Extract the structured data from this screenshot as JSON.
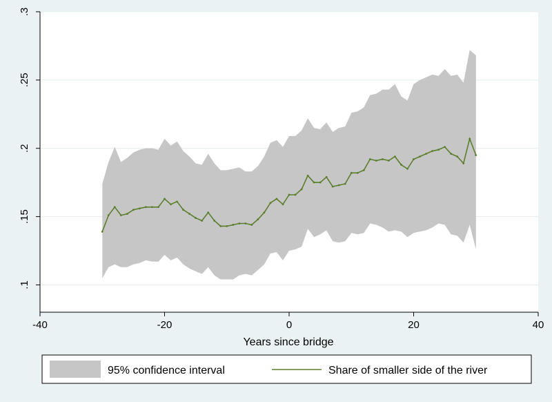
{
  "chart_data": {
    "type": "area",
    "title": "",
    "xlabel": "Years since bridge",
    "ylabel": "",
    "xlim": [
      -40,
      40
    ],
    "ylim": [
      0.08,
      0.3
    ],
    "x_ticks": [
      -40,
      -20,
      0,
      20,
      40
    ],
    "x_tick_labels": [
      "-40",
      "-20",
      "0",
      "20",
      "40"
    ],
    "y_ticks": [
      0.1,
      0.15,
      0.2,
      0.25,
      0.3
    ],
    "y_tick_labels": [
      ".1",
      ".15",
      ".2",
      ".25",
      ".3"
    ],
    "grid": "horizontal",
    "legend_position": "bottom",
    "colors": {
      "band": "#c6c6c6",
      "line": "#5b7e2c",
      "plot_bg": "#ffffff",
      "outer_bg": "#eaf2f3"
    },
    "series": [
      {
        "name": "95% confidence interval",
        "kind": "band",
        "x": [
          -30,
          -29,
          -28,
          -27,
          -26,
          -25,
          -24,
          -23,
          -22,
          -21,
          -20,
          -19,
          -18,
          -17,
          -16,
          -15,
          -14,
          -13,
          -12,
          -11,
          -10,
          -9,
          -8,
          -7,
          -6,
          -5,
          -4,
          -3,
          -2,
          -1,
          0,
          1,
          2,
          3,
          4,
          5,
          6,
          7,
          8,
          9,
          10,
          11,
          12,
          13,
          14,
          15,
          16,
          17,
          18,
          19,
          20,
          21,
          22,
          23,
          24,
          25,
          26,
          27,
          28,
          29,
          30
        ],
        "lower": [
          0.105,
          0.113,
          0.115,
          0.113,
          0.113,
          0.115,
          0.116,
          0.118,
          0.117,
          0.117,
          0.122,
          0.118,
          0.12,
          0.115,
          0.112,
          0.11,
          0.108,
          0.113,
          0.107,
          0.104,
          0.104,
          0.104,
          0.107,
          0.108,
          0.107,
          0.111,
          0.115,
          0.123,
          0.124,
          0.118,
          0.125,
          0.126,
          0.128,
          0.141,
          0.135,
          0.137,
          0.14,
          0.132,
          0.131,
          0.132,
          0.138,
          0.137,
          0.138,
          0.145,
          0.144,
          0.142,
          0.139,
          0.14,
          0.139,
          0.135,
          0.138,
          0.139,
          0.14,
          0.142,
          0.145,
          0.144,
          0.137,
          0.136,
          0.131,
          0.144,
          0.126
        ],
        "upper": [
          0.174,
          0.19,
          0.201,
          0.19,
          0.193,
          0.197,
          0.199,
          0.2,
          0.2,
          0.199,
          0.207,
          0.202,
          0.205,
          0.198,
          0.194,
          0.189,
          0.188,
          0.196,
          0.189,
          0.184,
          0.184,
          0.185,
          0.186,
          0.183,
          0.183,
          0.187,
          0.194,
          0.204,
          0.206,
          0.201,
          0.209,
          0.209,
          0.213,
          0.222,
          0.215,
          0.214,
          0.219,
          0.212,
          0.215,
          0.216,
          0.226,
          0.227,
          0.23,
          0.239,
          0.24,
          0.243,
          0.243,
          0.247,
          0.238,
          0.235,
          0.247,
          0.25,
          0.252,
          0.254,
          0.253,
          0.258,
          0.253,
          0.254,
          0.248,
          0.272,
          0.268
        ]
      },
      {
        "name": "Share of smaller side of the river",
        "kind": "line",
        "x": [
          -30,
          -29,
          -28,
          -27,
          -26,
          -25,
          -24,
          -23,
          -22,
          -21,
          -20,
          -19,
          -18,
          -17,
          -16,
          -15,
          -14,
          -13,
          -12,
          -11,
          -10,
          -9,
          -8,
          -7,
          -6,
          -5,
          -4,
          -3,
          -2,
          -1,
          0,
          1,
          2,
          3,
          4,
          5,
          6,
          7,
          8,
          9,
          10,
          11,
          12,
          13,
          14,
          15,
          16,
          17,
          18,
          19,
          20,
          21,
          22,
          23,
          24,
          25,
          26,
          27,
          28,
          29,
          30
        ],
        "values": [
          0.139,
          0.151,
          0.157,
          0.151,
          0.152,
          0.155,
          0.156,
          0.157,
          0.157,
          0.157,
          0.163,
          0.159,
          0.161,
          0.155,
          0.152,
          0.149,
          0.147,
          0.153,
          0.147,
          0.143,
          0.143,
          0.144,
          0.145,
          0.145,
          0.144,
          0.148,
          0.153,
          0.16,
          0.163,
          0.159,
          0.166,
          0.166,
          0.17,
          0.18,
          0.175,
          0.175,
          0.179,
          0.172,
          0.173,
          0.174,
          0.182,
          0.182,
          0.184,
          0.192,
          0.191,
          0.192,
          0.191,
          0.194,
          0.188,
          0.185,
          0.192,
          0.194,
          0.196,
          0.198,
          0.199,
          0.201,
          0.196,
          0.194,
          0.189,
          0.207,
          0.195
        ]
      }
    ]
  }
}
